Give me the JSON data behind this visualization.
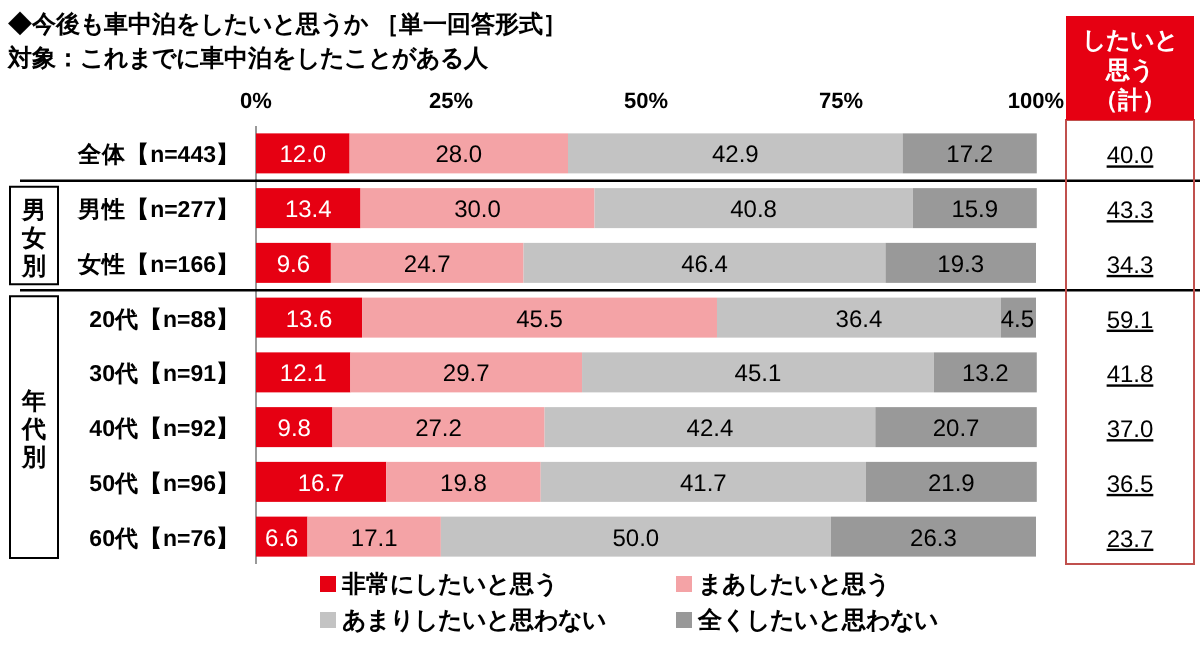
{
  "chart_data": {
    "type": "bar",
    "orientation": "horizontal",
    "stacked": true,
    "title": "◆今後も車中泊をしたいと思うか ［単一回答形式］",
    "subtitle": "対象：これまでに車中泊をしたことがある人",
    "categories": [
      "全体【n=443】",
      "男性【n=277】",
      "女性【n=166】",
      "20代【n=88】",
      "30代【n=91】",
      "40代【n=92】",
      "50代【n=96】",
      "60代【n=76】"
    ],
    "series": [
      {
        "name": "非常にしたいと思う",
        "color": "#e60012",
        "values": [
          12.0,
          13.4,
          9.6,
          13.6,
          12.1,
          9.8,
          16.7,
          6.6
        ],
        "value_labels": [
          "12.0",
          "13.4",
          "9.6",
          "13.6",
          "12.1",
          "9.8",
          "16.7",
          "6.6"
        ]
      },
      {
        "name": "まあしたいと思う",
        "color": "#f4a3a6",
        "values": [
          28.0,
          30.0,
          24.7,
          45.5,
          29.7,
          27.2,
          19.8,
          17.1
        ],
        "value_labels": [
          "28.0",
          "30.0",
          "24.7",
          "45.5",
          "29.7",
          "27.2",
          "19.8",
          "17.1"
        ]
      },
      {
        "name": "あまりしたいと思わない",
        "color": "#c3c3c3",
        "values": [
          42.9,
          40.8,
          46.4,
          36.4,
          45.1,
          42.4,
          41.7,
          50.0
        ],
        "value_labels": [
          "42.9",
          "40.8",
          "46.4",
          "36.4",
          "45.1",
          "42.4",
          "41.7",
          "50.0"
        ]
      },
      {
        "name": "全くしたいと思わない",
        "color": "#999999",
        "values": [
          17.2,
          15.9,
          19.3,
          4.5,
          13.2,
          20.7,
          21.9,
          26.3
        ],
        "value_labels": [
          "17.2",
          "15.9",
          "19.3",
          "4.5",
          "13.2",
          "20.7",
          "21.9",
          "26.3"
        ]
      }
    ],
    "xlim": [
      0,
      100
    ],
    "xticks": [
      {
        "value": 0,
        "label": "0%"
      },
      {
        "value": 25,
        "label": "25%"
      },
      {
        "value": 50,
        "label": "50%"
      },
      {
        "value": 75,
        "label": "75%"
      },
      {
        "value": 100,
        "label": "100%"
      }
    ],
    "annotations": [
      "したいと思う（計）",
      "男女別",
      "年代別",
      "40.0",
      "43.3",
      "34.3",
      "59.1",
      "41.8",
      "37.0",
      "36.5",
      "23.7"
    ],
    "legend": "bottom"
  }
}
